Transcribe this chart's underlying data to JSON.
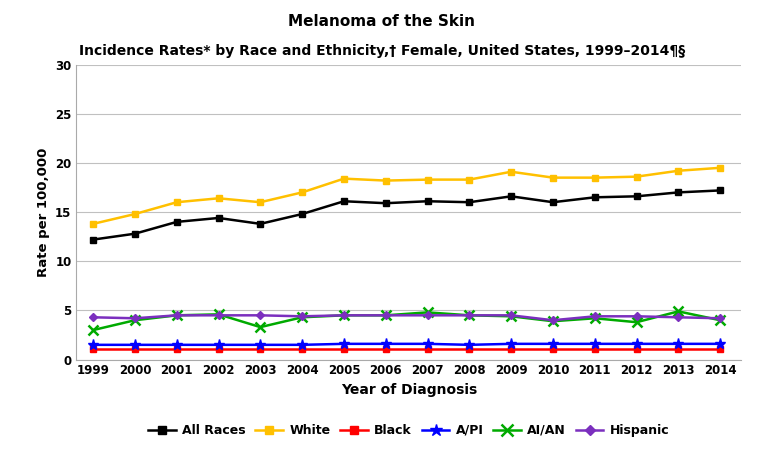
{
  "title_line1": "Melanoma of the Skin",
  "title_line2": "Incidence Rates* by Race and Ethnicity,† Female, United States, 1999–2014¶§",
  "xlabel": "Year of Diagnosis",
  "ylabel": "Rate per 100,000",
  "years": [
    1999,
    2000,
    2001,
    2002,
    2003,
    2004,
    2005,
    2006,
    2007,
    2008,
    2009,
    2010,
    2011,
    2012,
    2013,
    2014
  ],
  "all_races": [
    12.2,
    12.8,
    14.0,
    14.4,
    13.8,
    14.8,
    16.1,
    15.9,
    16.1,
    16.0,
    16.6,
    16.0,
    16.5,
    16.6,
    17.0,
    17.2
  ],
  "white": [
    13.8,
    14.8,
    16.0,
    16.4,
    16.0,
    17.0,
    18.4,
    18.2,
    18.3,
    18.3,
    19.1,
    18.5,
    18.5,
    18.6,
    19.2,
    19.5
  ],
  "black": [
    1.1,
    1.1,
    1.1,
    1.1,
    1.1,
    1.1,
    1.1,
    1.1,
    1.1,
    1.1,
    1.1,
    1.1,
    1.1,
    1.1,
    1.1,
    1.1
  ],
  "api": [
    1.5,
    1.5,
    1.5,
    1.5,
    1.5,
    1.5,
    1.6,
    1.6,
    1.6,
    1.5,
    1.6,
    1.6,
    1.6,
    1.6,
    1.6,
    1.6
  ],
  "aian": [
    3.0,
    4.0,
    4.5,
    4.6,
    3.3,
    4.3,
    4.5,
    4.5,
    4.8,
    4.5,
    4.4,
    3.9,
    4.2,
    3.8,
    4.9,
    4.0
  ],
  "hispanic": [
    4.3,
    4.2,
    4.5,
    4.5,
    4.5,
    4.4,
    4.5,
    4.5,
    4.5,
    4.5,
    4.5,
    4.0,
    4.4,
    4.4,
    4.3,
    4.2
  ],
  "colors": {
    "all_races": "#000000",
    "white": "#FFC000",
    "black": "#FF0000",
    "api": "#0000FF",
    "aian": "#00AA00",
    "hispanic": "#7B2FBE"
  },
  "ylim": [
    0,
    30
  ],
  "yticks": [
    0,
    5,
    10,
    15,
    20,
    25,
    30
  ],
  "background_color": "#FFFFFF",
  "grid_color": "#C0C0C0"
}
